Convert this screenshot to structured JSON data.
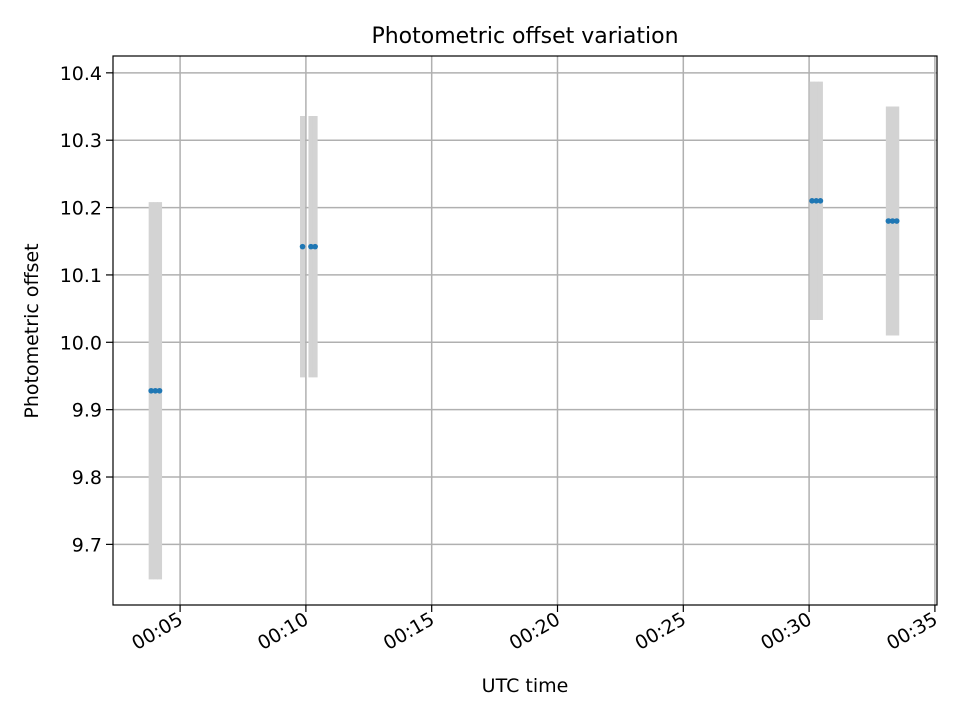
{
  "chart_data": {
    "type": "scatter",
    "title": "Photometric offset variation",
    "xlabel": "UTC time",
    "ylabel": "Photometric offset",
    "xlim": [
      "00:02:20",
      "00:35:05"
    ],
    "ylim": [
      9.61,
      10.425
    ],
    "x_ticks": [
      "00:05",
      "00:10",
      "00:15",
      "00:20",
      "00:25",
      "00:30",
      "00:35"
    ],
    "y_ticks": [
      "9.7",
      "9.8",
      "9.9",
      "10.0",
      "10.1",
      "10.2",
      "10.3",
      "10.4"
    ],
    "grid": true,
    "marker_color": "#1f77b4",
    "errorbar_color": "#d3d3d3",
    "points": [
      {
        "x": "00:03:51",
        "y": 9.928,
        "yerr": 0.28
      },
      {
        "x": "00:04:01",
        "y": 9.928,
        "yerr": 0.28
      },
      {
        "x": "00:04:11",
        "y": 9.928,
        "yerr": 0.28
      },
      {
        "x": "00:09:52",
        "y": 10.142,
        "yerr": 0.194
      },
      {
        "x": "00:10:12",
        "y": 10.142,
        "yerr": 0.194
      },
      {
        "x": "00:10:22",
        "y": 10.142,
        "yerr": 0.194
      },
      {
        "x": "00:30:07",
        "y": 10.21,
        "yerr": 0.177
      },
      {
        "x": "00:30:17",
        "y": 10.21,
        "yerr": 0.177
      },
      {
        "x": "00:30:27",
        "y": 10.21,
        "yerr": 0.177
      },
      {
        "x": "00:33:09",
        "y": 10.18,
        "yerr": 0.17
      },
      {
        "x": "00:33:19",
        "y": 10.18,
        "yerr": 0.17
      },
      {
        "x": "00:33:29",
        "y": 10.18,
        "yerr": 0.17
      }
    ]
  }
}
